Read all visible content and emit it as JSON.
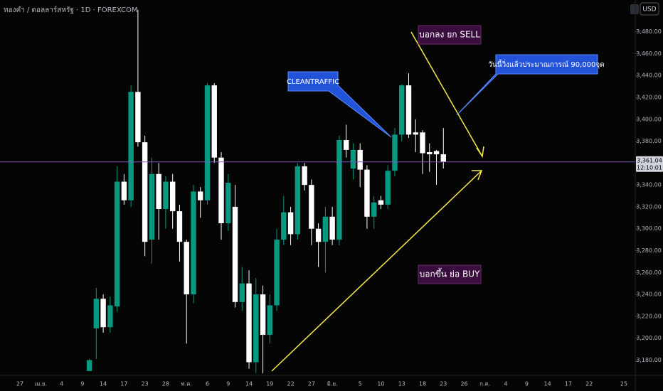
{
  "header": {
    "symbol": "ทองคำ / ดอลลาร์สหรัฐ · 1D · FOREXCOM",
    "currency": "USD"
  },
  "chart_data": {
    "type": "candlestick",
    "categories": [
      "27",
      null,
      null,
      "เม.ย.",
      null,
      null,
      "4",
      null,
      null,
      "9",
      null,
      null,
      "14",
      null,
      null,
      "17",
      null,
      null,
      "23",
      null,
      null,
      "28",
      null,
      null,
      "พ.ค.",
      null,
      null,
      "6",
      null,
      null,
      "9",
      null,
      null,
      "14",
      null,
      null,
      "19",
      null,
      null,
      "22",
      null,
      null,
      "27",
      null,
      null,
      "มิ.ย.",
      null,
      null,
      null,
      "5",
      null,
      null,
      "10",
      null,
      null,
      "13",
      null,
      null,
      "18",
      null,
      null,
      "23",
      null,
      null,
      "26",
      null,
      null,
      "ก.ค.",
      null,
      null,
      "4",
      null,
      null,
      "9",
      null,
      null,
      "14",
      null,
      null,
      "17",
      null,
      null,
      "22",
      null,
      null,
      null,
      null,
      "25"
    ],
    "open": [
      null,
      null,
      null,
      null,
      null,
      null,
      null,
      null,
      null,
      null,
      3170,
      3209,
      3236,
      3210,
      3229,
      3343,
      3326,
      3425,
      3379,
      3290,
      3350,
      3318,
      3343,
      3316,
      3288,
      3240,
      3334,
      3326,
      3431,
      3365,
      3305,
      3320,
      3233,
      3250,
      3178,
      3240,
      3203,
      3230,
      3290,
      3315,
      3295,
      3357,
      3340,
      3300,
      3288,
      3311,
      3290,
      3381,
      3355,
      3372,
      3354,
      3311,
      3326,
      3322,
      3353,
      3386,
      3431,
      3388,
      3388,
      3370,
      3371,
      3368,
      null,
      null,
      null,
      null,
      null,
      null,
      null,
      null,
      null,
      null,
      null,
      null,
      null,
      null,
      null,
      null,
      null,
      null,
      null,
      null,
      null,
      null,
      null,
      null,
      null,
      null
    ],
    "high": [
      null,
      null,
      null,
      null,
      null,
      null,
      null,
      null,
      null,
      null,
      3181,
      3246,
      3240,
      3238,
      3357,
      3350,
      3431,
      3500,
      3385,
      3365,
      3360,
      3348,
      3350,
      3322,
      3290,
      3340,
      3338,
      3433,
      3433,
      3370,
      3350,
      3340,
      3265,
      3262,
      3255,
      3248,
      3240,
      3300,
      3330,
      3320,
      3360,
      3360,
      3345,
      3305,
      3320,
      3320,
      3385,
      3395,
      3378,
      3378,
      3358,
      3330,
      3330,
      3358,
      3392,
      3432,
      3442,
      3400,
      3390,
      3378,
      3372,
      3392,
      null,
      null,
      null,
      null,
      null,
      null,
      null,
      null,
      null,
      null,
      null,
      null,
      null,
      null,
      null,
      null,
      null,
      null,
      null,
      null,
      null,
      null,
      null,
      null,
      null,
      null
    ],
    "low": [
      null,
      null,
      null,
      null,
      null,
      null,
      null,
      null,
      null,
      null,
      3170,
      3181,
      3205,
      3205,
      3224,
      3322,
      3320,
      3375,
      3275,
      3268,
      3290,
      3300,
      3300,
      3270,
      3195,
      3232,
      3310,
      3322,
      3360,
      3290,
      3298,
      3228,
      3225,
      3172,
      3168,
      3168,
      3195,
      3225,
      3285,
      3285,
      3290,
      3335,
      3285,
      3265,
      3260,
      3285,
      3285,
      3365,
      3345,
      3338,
      3300,
      3300,
      3318,
      3318,
      3348,
      3380,
      3383,
      3370,
      3350,
      3352,
      3340,
      3355,
      null,
      null,
      null,
      null,
      null,
      null,
      null,
      null,
      null,
      null,
      null,
      null,
      null,
      null,
      null,
      null,
      null,
      null,
      null,
      null,
      null,
      null,
      null,
      null,
      null,
      null
    ],
    "close": [
      null,
      null,
      null,
      null,
      null,
      null,
      null,
      null,
      null,
      null,
      3180,
      3236,
      3210,
      3230,
      3343,
      3326,
      3425,
      3379,
      3288,
      3350,
      3318,
      3343,
      3316,
      3288,
      3240,
      3334,
      3326,
      3431,
      3365,
      3305,
      3342,
      3233,
      3250,
      3178,
      3240,
      3203,
      3230,
      3290,
      3315,
      3295,
      3357,
      3340,
      3300,
      3288,
      3311,
      3290,
      3381,
      3372,
      3372,
      3354,
      3311,
      3324,
      3322,
      3353,
      3386,
      3431,
      3386,
      3386,
      3369,
      3368,
      3368,
      3361.04,
      null,
      null,
      null,
      null,
      null,
      null,
      null,
      null,
      null,
      null,
      null,
      null,
      null,
      null,
      null,
      null,
      null,
      null,
      null,
      null,
      null,
      null,
      null,
      null,
      null,
      null
    ],
    "up_color": "#089981",
    "down_color": "#ffffff",
    "ylim": [
      3166,
      3509
    ],
    "yticks": [
      {
        "value": 3180,
        "label": "3,180.00"
      },
      {
        "value": 3200,
        "label": "3,200.00"
      },
      {
        "value": 3220,
        "label": "3,220.00"
      },
      {
        "value": 3240,
        "label": "3,240.00"
      },
      {
        "value": 3260,
        "label": "3,260.00"
      },
      {
        "value": 3280,
        "label": "3,280.00"
      },
      {
        "value": 3300,
        "label": "3,300.00"
      },
      {
        "value": 3320,
        "label": "3,320.00"
      },
      {
        "value": 3340,
        "label": "3,340.00"
      },
      {
        "value": 3360,
        "label": "3,360.00"
      },
      {
        "value": 3380,
        "label": "3,380.00"
      },
      {
        "value": 3400,
        "label": "3,400.00"
      },
      {
        "value": 3420,
        "label": "3,420.00"
      },
      {
        "value": 3440,
        "label": "3,440.00"
      },
      {
        "value": 3460,
        "label": "3,460.00"
      },
      {
        "value": 3480,
        "label": "3,480.00"
      }
    ],
    "last_price": {
      "value": 3361.04,
      "label": "3,361.04"
    },
    "countdown": "12:10:01",
    "annotations": {
      "sell": "บอกลง ยก SELL",
      "buy": "บอกขึ้น ย่อ BUY",
      "brand": "CLEANTRAFFIC",
      "note": "วันนี้วิ่งแล้วประมาณการณ์ 90,000จุด"
    }
  }
}
